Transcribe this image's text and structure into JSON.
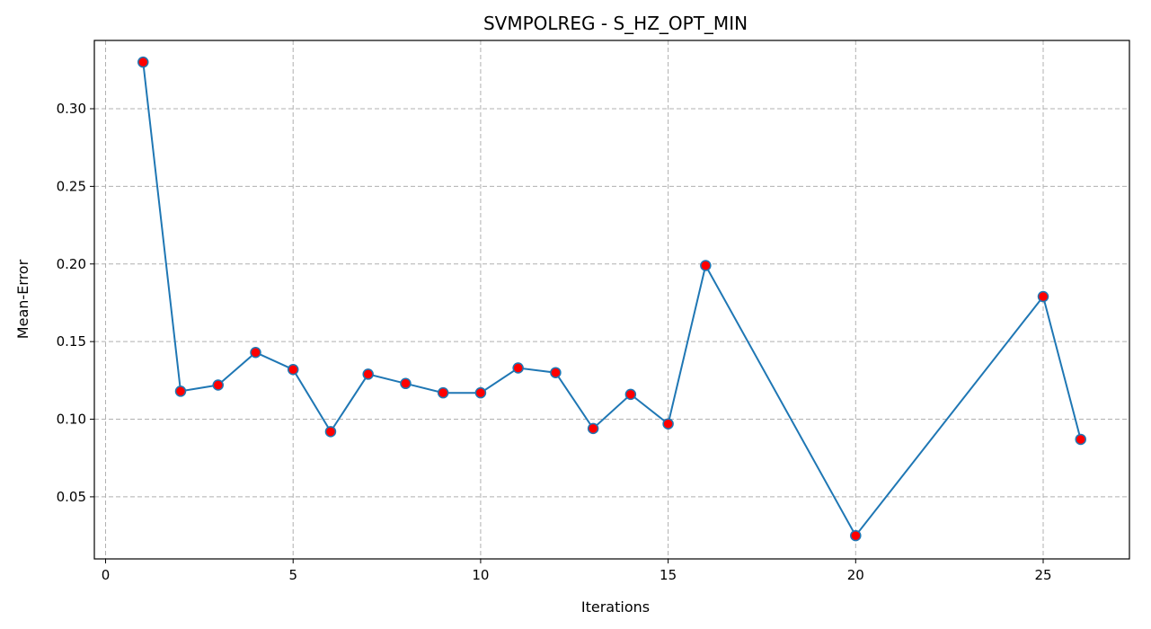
{
  "chart_data": {
    "type": "line",
    "title": "SVMPOLREG - S_HZ_OPT_MIN",
    "xlabel": "Iterations",
    "ylabel": "Mean-Error",
    "xlim": [
      -0.3,
      27.3
    ],
    "ylim": [
      0.01,
      0.344
    ],
    "xticks": [
      0,
      5,
      10,
      15,
      20,
      25
    ],
    "xtick_labels": [
      "0",
      "5",
      "10",
      "15",
      "20",
      "25"
    ],
    "yticks": [
      0.05,
      0.1,
      0.15,
      0.2,
      0.25,
      0.3
    ],
    "ytick_labels": [
      "0.05",
      "0.10",
      "0.15",
      "0.20",
      "0.25",
      "0.30"
    ],
    "grid": true,
    "line_color": "#1f77b4",
    "marker_face_color": "#ff0000",
    "marker_edge_color": "#1f77b4",
    "series": [
      {
        "x": [
          1,
          2,
          3,
          4,
          5,
          6,
          7,
          8,
          9,
          10,
          11,
          12,
          13,
          14,
          15,
          16,
          20,
          25,
          26
        ],
        "y": [
          0.33,
          0.118,
          0.122,
          0.143,
          0.132,
          0.092,
          0.129,
          0.123,
          0.117,
          0.117,
          0.133,
          0.13,
          0.094,
          0.116,
          0.097,
          0.199,
          0.025,
          0.179,
          0.087
        ]
      }
    ]
  }
}
